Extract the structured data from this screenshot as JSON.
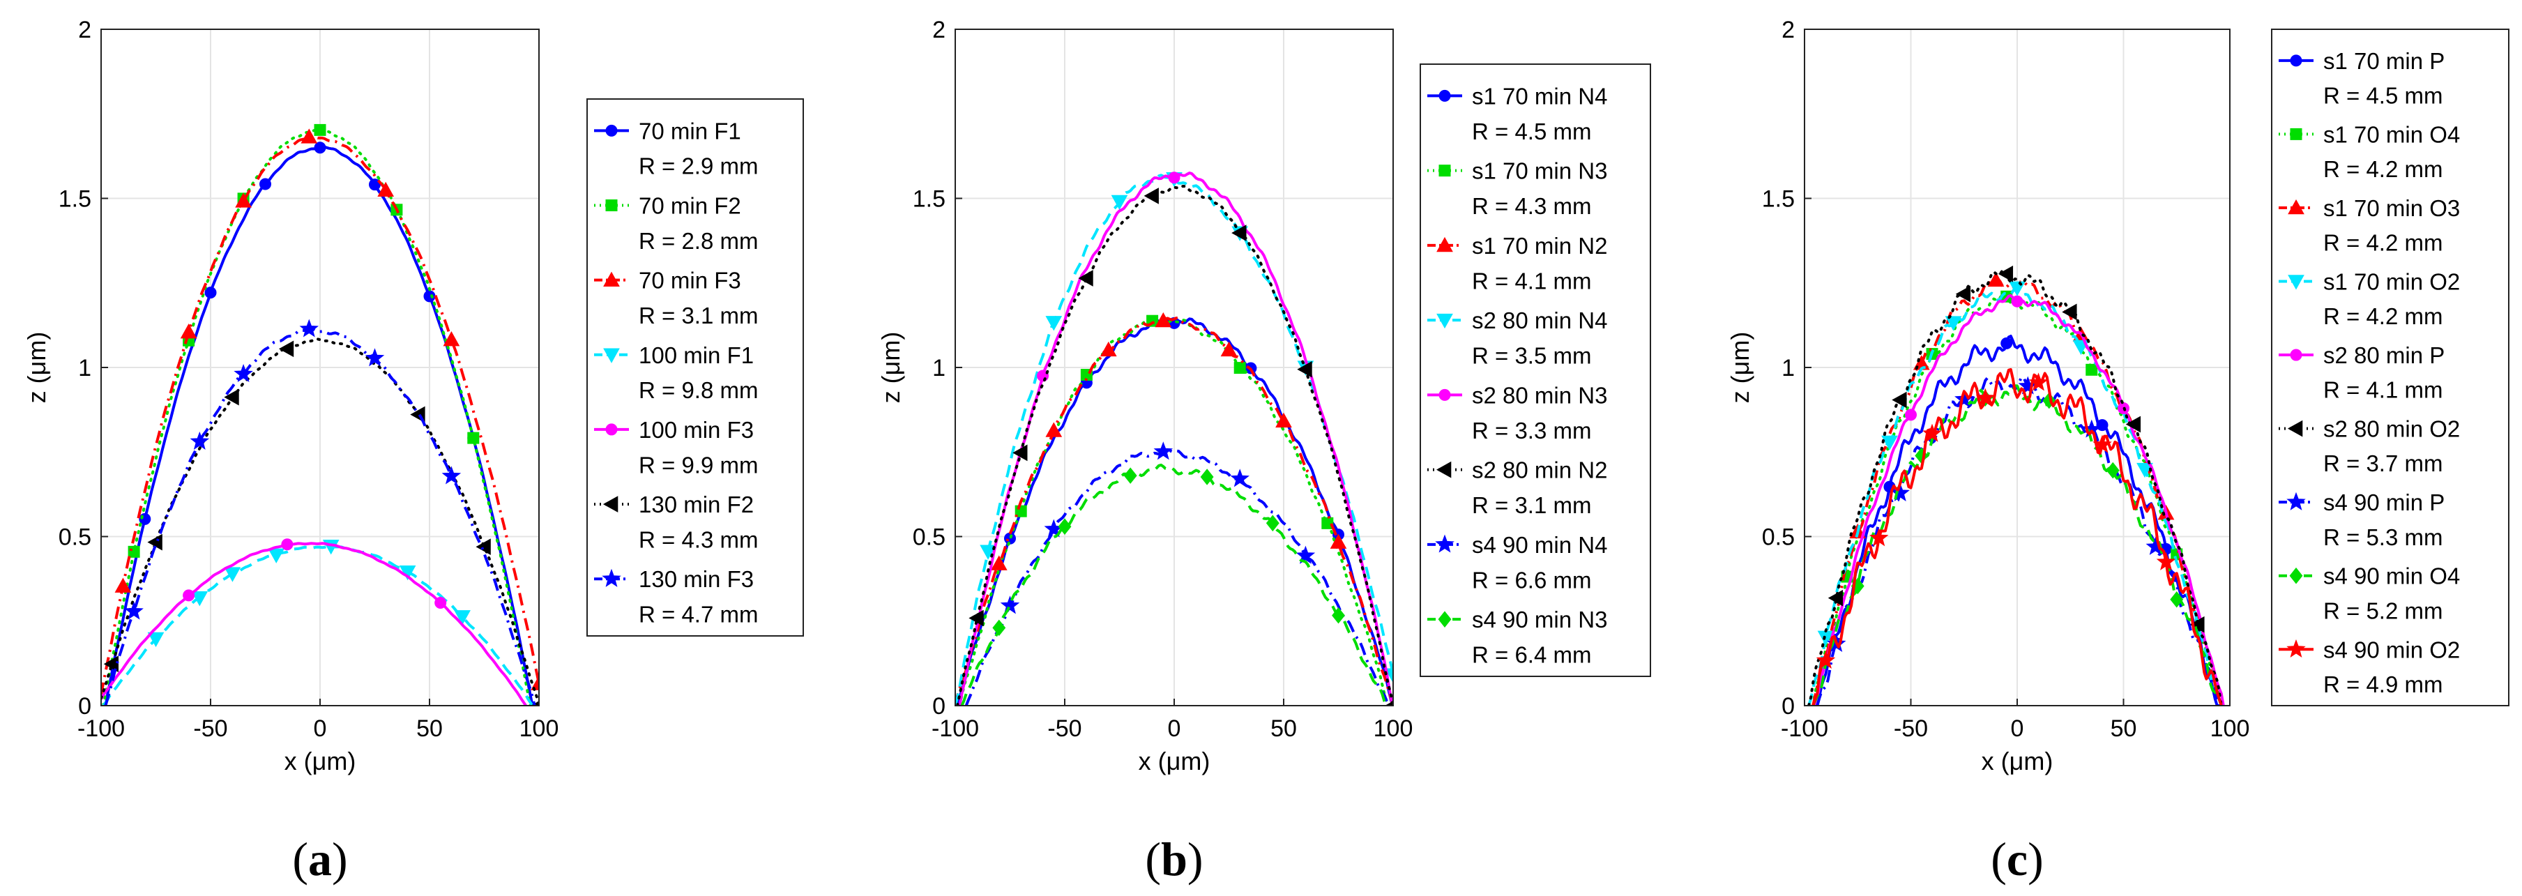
{
  "chart_data": [
    {
      "id": "a",
      "type": "line",
      "panel_label": "(a)",
      "panel_letter": "a",
      "xlabel": "x (μm)",
      "ylabel": "z (μm)",
      "xlim": [
        -100,
        100
      ],
      "ylim": [
        0,
        2
      ],
      "xticks": [
        -100,
        -50,
        0,
        50,
        100
      ],
      "yticks": [
        0,
        0.5,
        1,
        1.5,
        2
      ],
      "xtick_labels": [
        "-100",
        "-50",
        "0",
        "50",
        "100"
      ],
      "ytick_labels": [
        "0",
        "0.5",
        "1",
        "1.5",
        "2"
      ],
      "grid": true,
      "legend_position": "outside-right",
      "series": [
        {
          "name": "70 min F1",
          "radius_label": "R = 2.9 mm",
          "color": "#0000ff",
          "dash": "solid",
          "marker": "circle",
          "x_start": -98,
          "x_end": 97,
          "peak_x": 0,
          "peak_z": 1.65,
          "noise": 0.004,
          "marker_x": [
            -80,
            -50,
            -25,
            0,
            25,
            50,
            70
          ]
        },
        {
          "name": "70 min F2",
          "radius_label": "R = 2.8 mm",
          "color": "#00dd00",
          "dash": "dot",
          "marker": "square",
          "x_start": -99,
          "x_end": 96,
          "peak_x": -1,
          "peak_z": 1.7,
          "noise": 0.004,
          "marker_x": [
            -85,
            -60,
            -35,
            0,
            35,
            70
          ]
        },
        {
          "name": "70 min F3",
          "radius_label": "R = 3.1 mm",
          "color": "#ff0000",
          "dash": "dashdot",
          "marker": "triangle",
          "x_start": -101,
          "x_end": 102,
          "peak_x": -2,
          "peak_z": 1.68,
          "noise": 0.004,
          "marker_x": [
            -90,
            -60,
            -35,
            -5,
            30,
            60,
            100
          ]
        },
        {
          "name": "100 min F1",
          "radius_label": "R = 9.8 mm",
          "color": "#00e5ff",
          "dash": "dash",
          "marker": "triangle-down",
          "x_start": -99,
          "x_end": 97,
          "peak_x": 2,
          "peak_z": 0.47,
          "noise": 0.003,
          "marker_x": [
            -75,
            -55,
            -40,
            -20,
            5,
            40,
            65
          ]
        },
        {
          "name": "100 min F3",
          "radius_label": "R = 9.9 mm",
          "color": "#ff00ff",
          "dash": "solid",
          "marker": "circle",
          "x_start": -102,
          "x_end": 94,
          "peak_x": -5,
          "peak_z": 0.48,
          "noise": 0.002,
          "marker_x": [
            -60,
            -15,
            55
          ]
        },
        {
          "name": "130 min F2",
          "radius_label": "R = 4.3 mm",
          "color": "#000000",
          "dash": "dot",
          "marker": "triangle-left",
          "x_start": -101,
          "x_end": 100,
          "peak_x": 0,
          "peak_z": 1.08,
          "noise": 0.004,
          "marker_x": [
            -95,
            -75,
            -40,
            -15,
            45,
            75,
            100
          ]
        },
        {
          "name": "130 min F3",
          "radius_label": "R = 4.7 mm",
          "color": "#0000ff",
          "dash": "dashdot",
          "marker": "star",
          "x_start": -98,
          "x_end": 98,
          "peak_x": -3,
          "peak_z": 1.11,
          "noise": 0.006,
          "marker_x": [
            -85,
            -55,
            -35,
            -5,
            25,
            60
          ]
        }
      ]
    },
    {
      "id": "b",
      "type": "line",
      "panel_label": "(b)",
      "panel_letter": "b",
      "xlabel": "x (μm)",
      "ylabel": "z (μm)",
      "xlim": [
        -100,
        100
      ],
      "ylim": [
        0,
        2
      ],
      "xticks": [
        -100,
        -50,
        0,
        50,
        100
      ],
      "yticks": [
        0,
        0.5,
        1,
        1.5,
        2
      ],
      "xtick_labels": [
        "-100",
        "-50",
        "0",
        "50",
        "100"
      ],
      "ytick_labels": [
        "0",
        "0.5",
        "1",
        "1.5",
        "2"
      ],
      "grid": true,
      "legend_position": "outside-right",
      "series": [
        {
          "name": "s1 70 min N4",
          "radius_label": "R = 4.5 mm",
          "color": "#0000ff",
          "dash": "solid",
          "marker": "circle",
          "x_start": -99,
          "x_end": 100,
          "peak_x": 0,
          "peak_z": 1.14,
          "noise": 0.012,
          "marker_x": [
            -75,
            -40,
            0,
            35,
            75
          ]
        },
        {
          "name": "s1 70 min N3",
          "radius_label": "R = 4.3 mm",
          "color": "#00dd00",
          "dash": "dot",
          "marker": "square",
          "x_start": -98,
          "x_end": 98,
          "peak_x": -5,
          "peak_z": 1.14,
          "noise": 0.01,
          "marker_x": [
            -70,
            -40,
            -10,
            30,
            70
          ]
        },
        {
          "name": "s1 70 min N2",
          "radius_label": "R = 4.1 mm",
          "color": "#ff0000",
          "dash": "dashdot",
          "marker": "triangle",
          "x_start": -100,
          "x_end": 100,
          "peak_x": -3,
          "peak_z": 1.14,
          "noise": 0.01,
          "marker_x": [
            -80,
            -55,
            -30,
            -5,
            25,
            50,
            75,
            100
          ]
        },
        {
          "name": "s2 80 min N4",
          "radius_label": "R = 3.5 mm",
          "color": "#00e5ff",
          "dash": "dash",
          "marker": "triangle-down",
          "x_start": -100,
          "x_end": 103,
          "peak_x": -5,
          "peak_z": 1.56,
          "noise": 0.01,
          "marker_x": [
            -85,
            -55,
            -25,
            0,
            30,
            60,
            100
          ]
        },
        {
          "name": "s2 80 min N3",
          "radius_label": "R = 3.3 mm",
          "color": "#ff00ff",
          "dash": "solid",
          "marker": "circle",
          "x_start": -98,
          "x_end": 100,
          "peak_x": 2,
          "peak_z": 1.57,
          "noise": 0.01,
          "marker_x": [
            -60,
            0
          ]
        },
        {
          "name": "s2 80 min N2",
          "radius_label": "R = 3.1 mm",
          "color": "#000000",
          "dash": "dot",
          "marker": "triangle-left",
          "x_start": -99,
          "x_end": 100,
          "peak_x": 2,
          "peak_z": 1.53,
          "noise": 0.008,
          "marker_x": [
            -90,
            -70,
            -40,
            -10,
            30,
            60,
            100
          ]
        },
        {
          "name": "s4 90 min N4",
          "radius_label": "R = 6.6 mm",
          "color": "#0000ff",
          "dash": "dashdot",
          "marker": "star",
          "x_start": -95,
          "x_end": 98,
          "peak_x": -5,
          "peak_z": 0.75,
          "noise": 0.01,
          "marker_x": [
            -75,
            -55,
            -5,
            30,
            60
          ]
        },
        {
          "name": "s4 90 min N3",
          "radius_label": "R = 6.4 mm",
          "color": "#00dd00",
          "dash": "dash",
          "marker": "diamond",
          "x_start": -97,
          "x_end": 97,
          "peak_x": -5,
          "peak_z": 0.7,
          "noise": 0.012,
          "marker_x": [
            -80,
            -50,
            -20,
            15,
            45,
            75
          ]
        }
      ]
    },
    {
      "id": "c",
      "type": "line",
      "panel_label": "(c)",
      "panel_letter": "c",
      "xlabel": "x (μm)",
      "ylabel": "z (μm)",
      "xlim": [
        -100,
        100
      ],
      "ylim": [
        0,
        2
      ],
      "xticks": [
        -100,
        -50,
        0,
        50,
        100
      ],
      "yticks": [
        0,
        0.5,
        1,
        1.5,
        2
      ],
      "xtick_labels": [
        "-100",
        "-50",
        "0",
        "50",
        "100"
      ],
      "ytick_labels": [
        "0",
        "0.5",
        "1",
        "1.5",
        "2"
      ],
      "grid": true,
      "legend_position": "outside-right",
      "series": [
        {
          "name": "s1 70 min P",
          "radius_label": "R = 4.5 mm",
          "color": "#0000ff",
          "dash": "solid",
          "marker": "circle",
          "x_start": -94,
          "x_end": 95,
          "peak_x": -5,
          "peak_z": 1.06,
          "noise": 0.035,
          "marker_x": [
            -60,
            -5,
            40,
            70
          ]
        },
        {
          "name": "s1 70 min O4",
          "radius_label": "R = 4.2 mm",
          "color": "#00dd00",
          "dash": "dot",
          "marker": "square",
          "x_start": -96,
          "x_end": 96,
          "peak_x": -5,
          "peak_z": 1.2,
          "noise": 0.02,
          "marker_x": [
            -80,
            -40,
            -5,
            35,
            75
          ]
        },
        {
          "name": "s1 70 min O3",
          "radius_label": "R = 4.2 mm",
          "color": "#ff0000",
          "dash": "dashdot",
          "marker": "triangle",
          "x_start": -96,
          "x_end": 96,
          "peak_x": -5,
          "peak_z": 1.25,
          "noise": 0.02,
          "marker_x": [
            -75,
            -45,
            -10,
            30,
            70
          ]
        },
        {
          "name": "s1 70 min O2",
          "radius_label": "R = 4.2 mm",
          "color": "#00e5ff",
          "dash": "dash",
          "marker": "triangle-down",
          "x_start": -98,
          "x_end": 95,
          "peak_x": -5,
          "peak_z": 1.22,
          "noise": 0.02,
          "marker_x": [
            -90,
            -60,
            -30,
            0,
            30,
            60
          ]
        },
        {
          "name": "s2 80 min P",
          "radius_label": "R = 4.1 mm",
          "color": "#ff00ff",
          "dash": "solid",
          "marker": "circle",
          "x_start": -95,
          "x_end": 97,
          "peak_x": 0,
          "peak_z": 1.2,
          "noise": 0.015,
          "marker_x": [
            -50,
            0,
            50
          ]
        },
        {
          "name": "s2 80 min O2",
          "radius_label": "R = 3.7 mm",
          "color": "#000000",
          "dash": "dot",
          "marker": "triangle-left",
          "x_start": -98,
          "x_end": 96,
          "peak_x": -5,
          "peak_z": 1.27,
          "noise": 0.025,
          "marker_x": [
            -85,
            -55,
            -25,
            -5,
            25,
            55,
            85
          ]
        },
        {
          "name": "s4 90 min P",
          "radius_label": "R = 5.3 mm",
          "color": "#0000ff",
          "dash": "dashdot",
          "marker": "star",
          "x_start": -94,
          "x_end": 95,
          "peak_x": -5,
          "peak_z": 0.95,
          "noise": 0.03,
          "marker_x": [
            -85,
            -55,
            -25,
            5,
            35,
            65
          ]
        },
        {
          "name": "s4 90 min O4",
          "radius_label": "R = 5.2 mm",
          "color": "#00dd00",
          "dash": "dash",
          "marker": "diamond",
          "x_start": -96,
          "x_end": 96,
          "peak_x": -5,
          "peak_z": 0.92,
          "noise": 0.03,
          "marker_x": [
            -75,
            -45,
            -15,
            15,
            45,
            75
          ]
        },
        {
          "name": "s4 90 min O2",
          "radius_label": "R = 4.9 mm",
          "color": "#ff0000",
          "dash": "solid",
          "marker": "star",
          "x_start": -96,
          "x_end": 96,
          "peak_x": 0,
          "peak_z": 0.95,
          "noise": 0.06,
          "marker_x": [
            -90,
            -65,
            -40,
            -15,
            10,
            40,
            70
          ]
        }
      ]
    }
  ]
}
